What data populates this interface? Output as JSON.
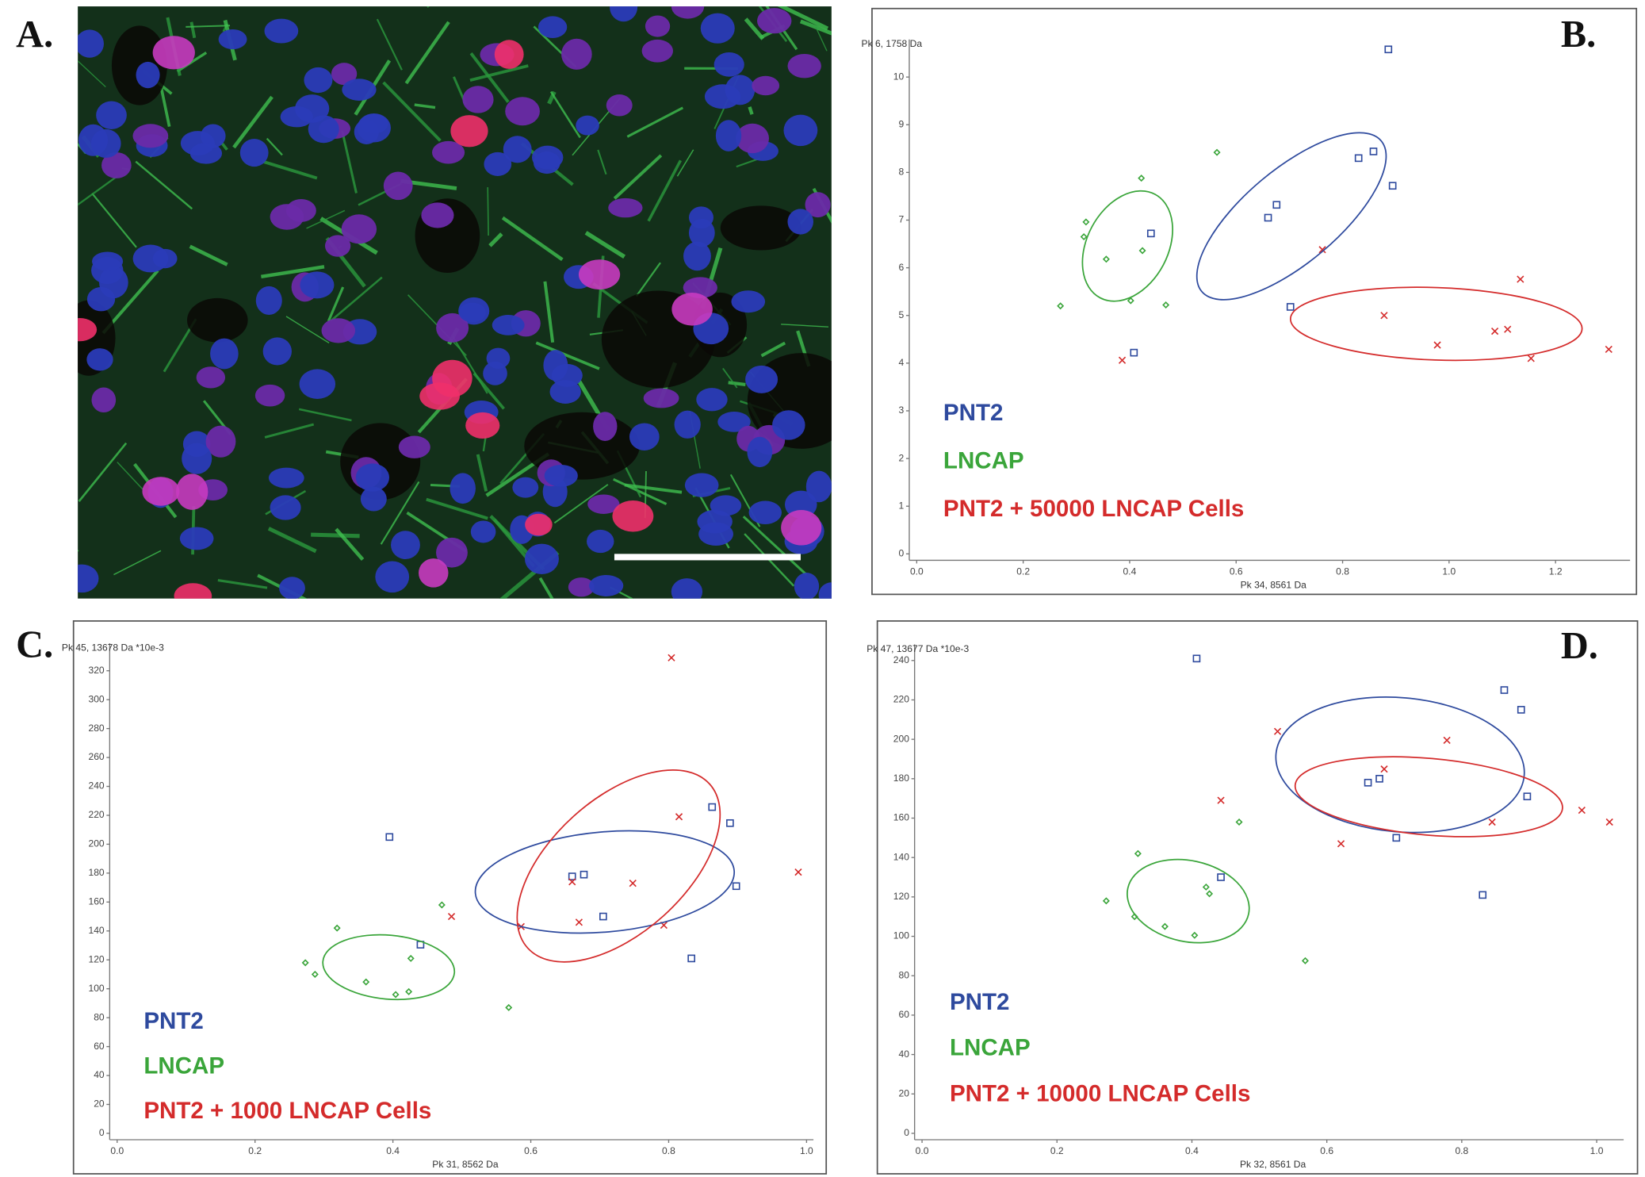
{
  "panel_a": {
    "label": "A."
  },
  "chart_data": [
    {
      "type": "scatter",
      "label": "B.",
      "y_label": "Pk 6, 1758 Da",
      "x_label": "Pk 34, 8561 Da",
      "xlim": [
        0,
        1.34
      ],
      "ylim": [
        0,
        10.7
      ],
      "xticks": [
        {
          "value": 0,
          "label": "0.0"
        },
        0.2,
        0.4,
        0.6,
        0.8,
        {
          "value": 1,
          "label": "1.0"
        },
        1.2
      ],
      "yticks": [
        0,
        1,
        2,
        3,
        4,
        5,
        6,
        7,
        8,
        9,
        10
      ],
      "series": [
        {
          "name": "PNT2",
          "color": "#2e4a9e",
          "marker": "square",
          "x": [
            0.886,
            0.858,
            0.83,
            0.894,
            0.676,
            0.66,
            0.44,
            0.702,
            0.408
          ],
          "values": [
            10.58,
            8.44,
            8.3,
            7.72,
            7.32,
            7.05,
            6.72,
            5.18,
            4.22
          ]
        },
        {
          "name": "LNCAP",
          "color": "#3aa53a",
          "marker": "diamond",
          "x": [
            0.422,
            0.564,
            0.318,
            0.314,
            0.356,
            0.424,
            0.402,
            0.27,
            0.468
          ],
          "values": [
            7.88,
            8.42,
            6.96,
            6.65,
            6.18,
            6.36,
            5.31,
            5.2,
            5.22
          ]
        },
        {
          "name": "PNT2 + 50000 LNCAP Cells",
          "color": "#d42b2b",
          "marker": "cross",
          "x": [
            0.762,
            1.134,
            0.878,
            0.978,
            1.086,
            1.11,
            1.154,
            1.3,
            0.386
          ],
          "values": [
            6.38,
            5.76,
            5.0,
            4.38,
            4.67,
            4.71,
            4.1,
            4.29,
            4.06
          ]
        }
      ]
    },
    {
      "type": "scatter",
      "label": "C.",
      "y_label": "Pk 45, 13678 Da *10e-3",
      "x_label": "Pk 31, 8562 Da",
      "xlim": [
        0,
        1.01
      ],
      "ylim": [
        0,
        336
      ],
      "xticks": [
        {
          "value": 0,
          "label": "0.0"
        },
        0.2,
        0.4,
        0.6,
        0.8,
        {
          "value": 1,
          "label": "1.0"
        }
      ],
      "yticks": [
        0,
        20,
        40,
        60,
        80,
        100,
        120,
        140,
        160,
        180,
        200,
        220,
        240,
        260,
        280,
        300,
        320
      ],
      "series": [
        {
          "name": "PNT2",
          "color": "#2e4a9e",
          "marker": "square",
          "x": [
            0.395,
            0.44,
            0.66,
            0.677,
            0.705,
            0.863,
            0.889,
            0.898,
            0.833
          ],
          "values": [
            205,
            130.5,
            177.7,
            179,
            150,
            225.7,
            214.6,
            171,
            121
          ]
        },
        {
          "name": "LNCAP",
          "color": "#3aa53a",
          "marker": "diamond",
          "x": [
            0.273,
            0.287,
            0.319,
            0.361,
            0.426,
            0.404,
            0.423,
            0.471,
            0.568
          ],
          "values": [
            118,
            110,
            142,
            104.7,
            121,
            96,
            98,
            158,
            87
          ]
        },
        {
          "name": "PNT2 + 1000 LNCAP Cells",
          "color": "#d42b2b",
          "marker": "cross",
          "x": [
            0.804,
            0.815,
            0.748,
            0.66,
            0.67,
            0.793,
            0.586,
            0.485,
            0.988
          ],
          "values": [
            329,
            219,
            173,
            174,
            146,
            144,
            143,
            150,
            180.7
          ]
        }
      ]
    },
    {
      "type": "scatter",
      "label": "D.",
      "y_label": "Pk 47, 13677 Da *10e-3",
      "x_label": "Pk 32, 8561 Da",
      "xlim": [
        0,
        1.04
      ],
      "ylim": [
        0,
        246
      ],
      "xticks": [
        {
          "value": 0,
          "label": "0.0"
        },
        0.2,
        0.4,
        0.6,
        0.8,
        {
          "value": 1,
          "label": "1.0"
        }
      ],
      "yticks": [
        0,
        20,
        40,
        60,
        80,
        100,
        120,
        140,
        160,
        180,
        200,
        220,
        240
      ],
      "series": [
        {
          "name": "PNT2",
          "color": "#2e4a9e",
          "marker": "square",
          "x": [
            0.407,
            0.863,
            0.888,
            0.661,
            0.678,
            0.897,
            0.703,
            0.443,
            0.831
          ],
          "values": [
            241,
            225,
            215,
            178,
            180,
            171,
            150,
            130,
            121
          ]
        },
        {
          "name": "LNCAP",
          "color": "#3aa53a",
          "marker": "diamond",
          "x": [
            0.32,
            0.273,
            0.315,
            0.36,
            0.421,
            0.426,
            0.404,
            0.47,
            0.568
          ],
          "values": [
            142,
            118,
            110,
            105,
            125,
            121.6,
            100.5,
            158,
            87.6
          ]
        },
        {
          "name": "PNT2 + 10000 LNCAP Cells",
          "color": "#d42b2b",
          "marker": "cross",
          "x": [
            0.527,
            0.443,
            0.685,
            0.778,
            0.621,
            0.845,
            0.978,
            1.019
          ],
          "values": [
            204,
            169,
            184.9,
            199.5,
            147,
            158,
            164,
            158
          ]
        }
      ]
    }
  ]
}
